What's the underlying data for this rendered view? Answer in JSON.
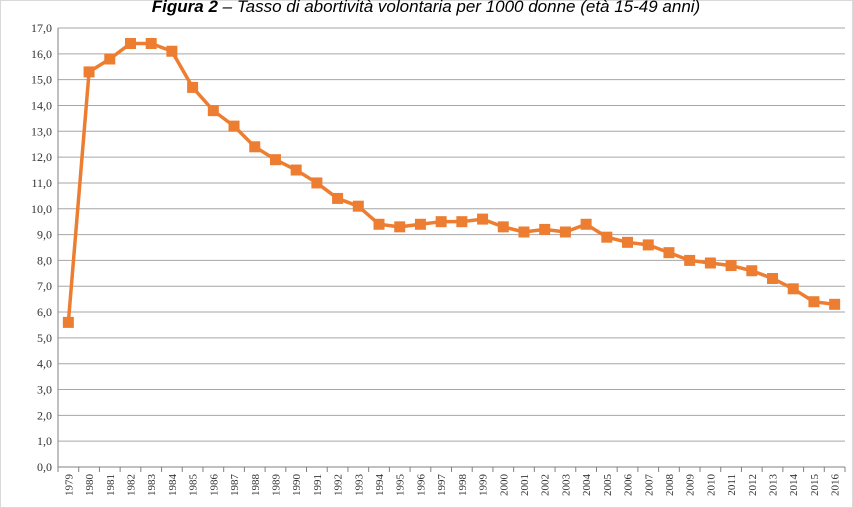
{
  "chart_data": {
    "type": "line",
    "title_label": "Figura 2",
    "title": "– Tasso di abortività volontaria per 1000 donne (età 15-49 anni)",
    "categories": [
      "1979",
      "1980",
      "1981",
      "1982",
      "1983",
      "1984",
      "1985",
      "1986",
      "1987",
      "1988",
      "1989",
      "1990",
      "1991",
      "1992",
      "1993",
      "1994",
      "1995",
      "1996",
      "1997",
      "1998",
      "1999",
      "2000",
      "2001",
      "2002",
      "2003",
      "2004",
      "2005",
      "2006",
      "2007",
      "2008",
      "2009",
      "2010",
      "2011",
      "2012",
      "2013",
      "2014",
      "2015",
      "2016"
    ],
    "values": [
      5.6,
      15.3,
      15.8,
      16.4,
      16.4,
      16.1,
      14.7,
      13.8,
      13.2,
      12.4,
      11.9,
      11.5,
      11.0,
      10.4,
      10.1,
      9.4,
      9.3,
      9.4,
      9.5,
      9.5,
      9.6,
      9.3,
      9.1,
      9.2,
      9.1,
      9.4,
      8.9,
      8.7,
      8.6,
      8.3,
      8.0,
      7.9,
      7.8,
      7.6,
      7.3,
      6.9,
      6.4,
      6.3
    ],
    "color": "#ed7d31",
    "ylim": [
      0,
      17
    ],
    "yticks": [
      {
        "value": 0,
        "label": "0,0"
      },
      {
        "value": 1,
        "label": "1,0"
      },
      {
        "value": 2,
        "label": "2,0"
      },
      {
        "value": 3,
        "label": "3,0"
      },
      {
        "value": 4,
        "label": "4,0"
      },
      {
        "value": 5,
        "label": "5,0"
      },
      {
        "value": 6,
        "label": "6,0"
      },
      {
        "value": 7,
        "label": "7,0"
      },
      {
        "value": 8,
        "label": "8,0"
      },
      {
        "value": 9,
        "label": "9,0"
      },
      {
        "value": 10,
        "label": "10,0"
      },
      {
        "value": 11,
        "label": "11,0"
      },
      {
        "value": 12,
        "label": "12,0"
      },
      {
        "value": 13,
        "label": "13,0"
      },
      {
        "value": 14,
        "label": "14,0"
      },
      {
        "value": 15,
        "label": "15,0"
      },
      {
        "value": 16,
        "label": "16,0"
      },
      {
        "value": 17,
        "label": "17,0"
      }
    ],
    "grid": true
  }
}
